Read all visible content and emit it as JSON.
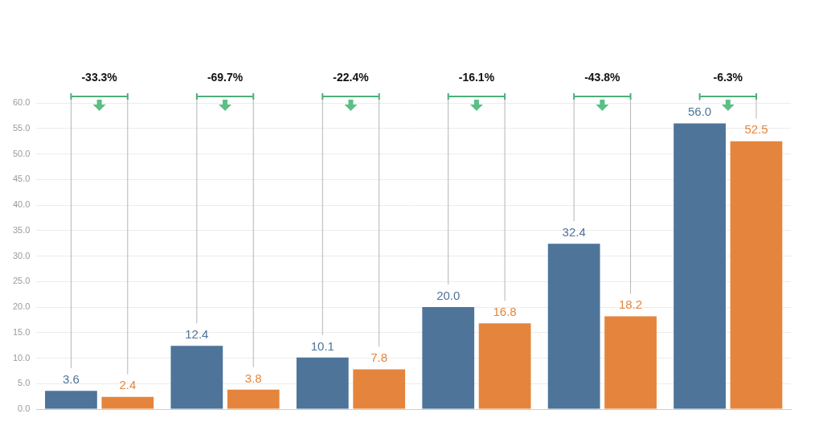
{
  "chart_data": {
    "type": "bar",
    "categories": [
      null,
      null,
      null,
      null,
      null,
      null
    ],
    "series": [
      {
        "color": "#4e7499",
        "values": [
          3.6,
          12.4,
          10.1,
          20.0,
          32.4,
          56.0
        ],
        "value_labels": [
          "3.6",
          "12.4",
          "10.1",
          "20.0",
          "32.4",
          "56.0"
        ]
      },
      {
        "color": "#e5853d",
        "values": [
          2.4,
          3.8,
          7.8,
          16.8,
          18.2,
          52.5
        ],
        "value_labels": [
          "2.4",
          "3.8",
          "7.8",
          "16.8",
          "18.2",
          "52.5"
        ]
      }
    ],
    "annotations": [
      "-33.3%",
      "-69.7%",
      "-22.4%",
      "-16.1%",
      "-43.8%",
      "-6.3%"
    ],
    "ylim": [
      0,
      60
    ],
    "yticks": [
      {
        "value": 0,
        "label": "0.0"
      },
      {
        "value": 5,
        "label": "5.0"
      },
      {
        "value": 10,
        "label": "10.0"
      },
      {
        "value": 15,
        "label": "15.0"
      },
      {
        "value": 20,
        "label": "20.0"
      },
      {
        "value": 25,
        "label": "25.0"
      },
      {
        "value": 30,
        "label": "30.0"
      },
      {
        "value": 35,
        "label": "35.0"
      },
      {
        "value": 40,
        "label": "40.0"
      },
      {
        "value": 45,
        "label": "45.0"
      },
      {
        "value": 50,
        "label": "50.0"
      },
      {
        "value": 55,
        "label": "55.0"
      },
      {
        "value": 60,
        "label": "60.0"
      }
    ],
    "grid": true,
    "data_labels": true,
    "tick_labels": "y"
  }
}
